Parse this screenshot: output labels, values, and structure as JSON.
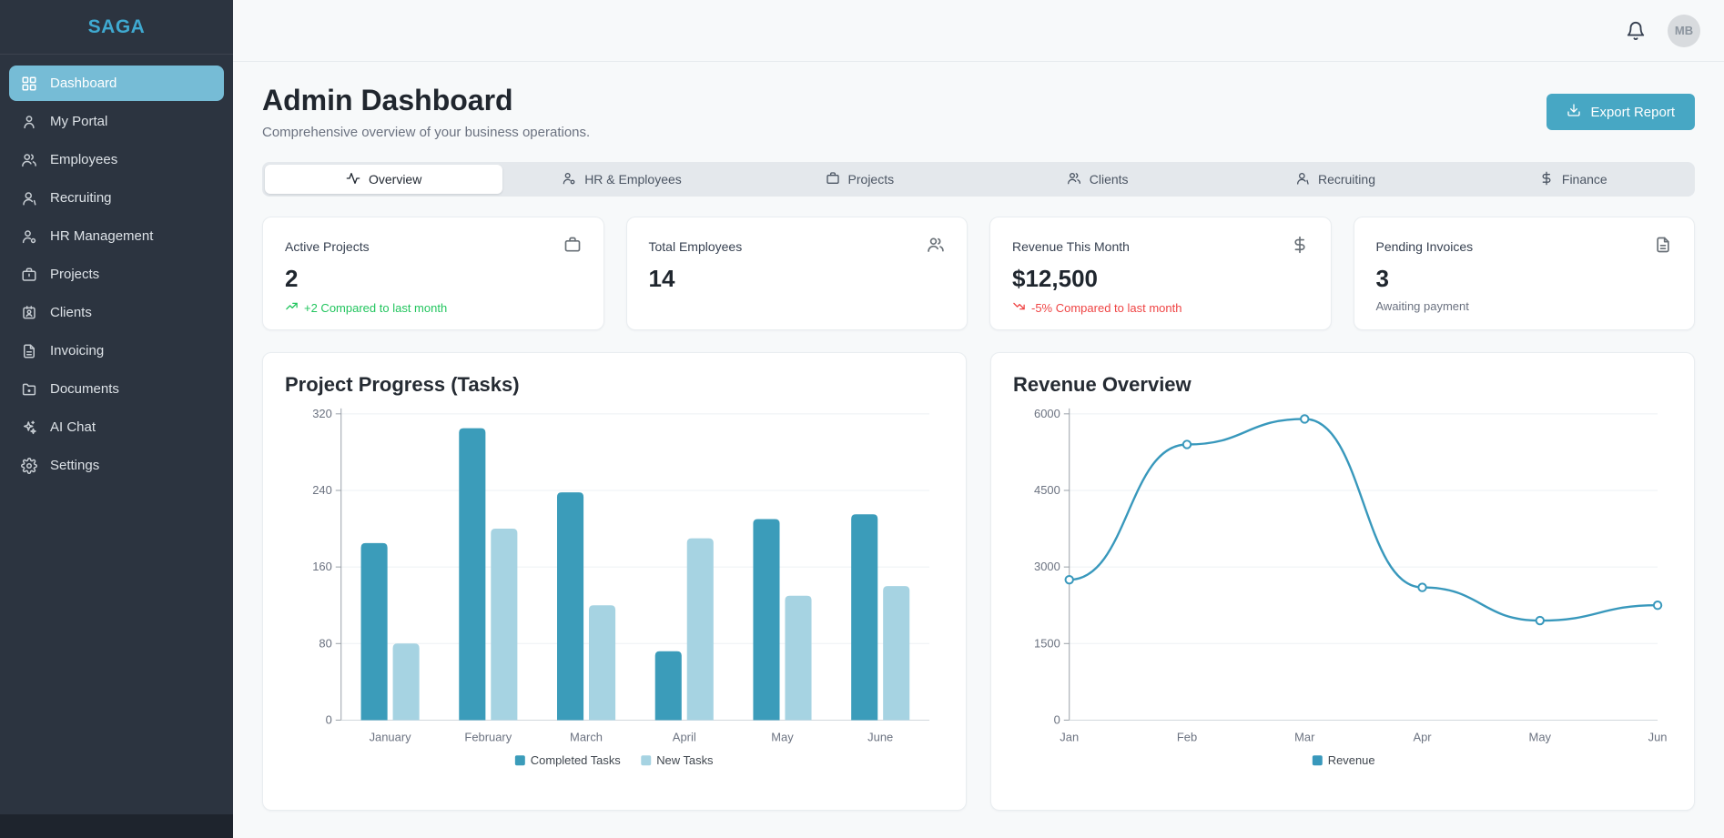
{
  "app": {
    "logo": "SAGA",
    "avatar_initials": "MB"
  },
  "sidebar": {
    "items": [
      {
        "label": "Dashboard",
        "icon": "layout-grid-icon",
        "active": true
      },
      {
        "label": "My Portal",
        "icon": "user-icon",
        "active": false
      },
      {
        "label": "Employees",
        "icon": "users-icon",
        "active": false
      },
      {
        "label": "Recruiting",
        "icon": "user-round-icon",
        "active": false
      },
      {
        "label": "HR Management",
        "icon": "user-cog-icon",
        "active": false
      },
      {
        "label": "Projects",
        "icon": "briefcase-icon",
        "active": false
      },
      {
        "label": "Clients",
        "icon": "id-card-icon",
        "active": false
      },
      {
        "label": "Invoicing",
        "icon": "file-text-icon",
        "active": false
      },
      {
        "label": "Documents",
        "icon": "folder-icon",
        "active": false
      },
      {
        "label": "AI Chat",
        "icon": "sparkles-icon",
        "active": false
      },
      {
        "label": "Settings",
        "icon": "gear-icon",
        "active": false
      }
    ]
  },
  "header": {
    "title": "Admin Dashboard",
    "subtitle": "Comprehensive overview of your business operations.",
    "export_label": "Export Report"
  },
  "tabs": [
    {
      "label": "Overview",
      "icon": "activity-icon",
      "active": true
    },
    {
      "label": "HR & Employees",
      "icon": "user-cog-icon",
      "active": false
    },
    {
      "label": "Projects",
      "icon": "briefcase-icon",
      "active": false
    },
    {
      "label": "Clients",
      "icon": "users-icon",
      "active": false
    },
    {
      "label": "Recruiting",
      "icon": "user-round-icon",
      "active": false
    },
    {
      "label": "Finance",
      "icon": "dollar-icon",
      "active": false
    }
  ],
  "stat_cards": [
    {
      "label": "Active Projects",
      "value": "2",
      "icon": "briefcase-icon",
      "trend": "+2 Compared to last month",
      "trend_type": "up"
    },
    {
      "label": "Total Employees",
      "value": "14",
      "icon": "users-icon",
      "trend": "",
      "trend_type": "none"
    },
    {
      "label": "Revenue This Month",
      "value": "$12,500",
      "icon": "dollar-icon",
      "trend": "-5% Compared to last month",
      "trend_type": "down"
    },
    {
      "label": "Pending Invoices",
      "value": "3",
      "icon": "file-text-icon",
      "trend": "Awaiting payment",
      "trend_type": "neutral"
    }
  ],
  "chart_data": [
    {
      "type": "bar",
      "title": "Project Progress (Tasks)",
      "categories": [
        "January",
        "February",
        "March",
        "April",
        "May",
        "June"
      ],
      "series": [
        {
          "name": "Completed Tasks",
          "color": "#3b9cba",
          "values": [
            185,
            305,
            238,
            72,
            210,
            215
          ]
        },
        {
          "name": "New Tasks",
          "color": "#a6d3e2",
          "values": [
            80,
            200,
            120,
            190,
            130,
            140
          ]
        }
      ],
      "xlabel": "",
      "ylabel": "",
      "ylim": [
        0,
        320
      ],
      "yticks": [
        0,
        80,
        160,
        240,
        320
      ],
      "grid": true,
      "legend_position": "bottom"
    },
    {
      "type": "line",
      "title": "Revenue Overview",
      "x": [
        "Jan",
        "Feb",
        "Mar",
        "Apr",
        "May",
        "Jun"
      ],
      "series": [
        {
          "name": "Revenue",
          "color": "#3898bc",
          "values": [
            2750,
            5400,
            5900,
            2600,
            1950,
            2250
          ]
        }
      ],
      "xlabel": "",
      "ylabel": "",
      "ylim": [
        0,
        6000
      ],
      "yticks": [
        0,
        1500,
        3000,
        4500,
        6000
      ],
      "grid": true,
      "legend_position": "bottom"
    }
  ],
  "colors": {
    "accent": "#47a7c4",
    "green": "#22c55e",
    "red": "#ef4444",
    "sidebar-bg": "#2c3440",
    "sidebar-active": "#76bcd6",
    "bg": "#f7f9fa"
  }
}
